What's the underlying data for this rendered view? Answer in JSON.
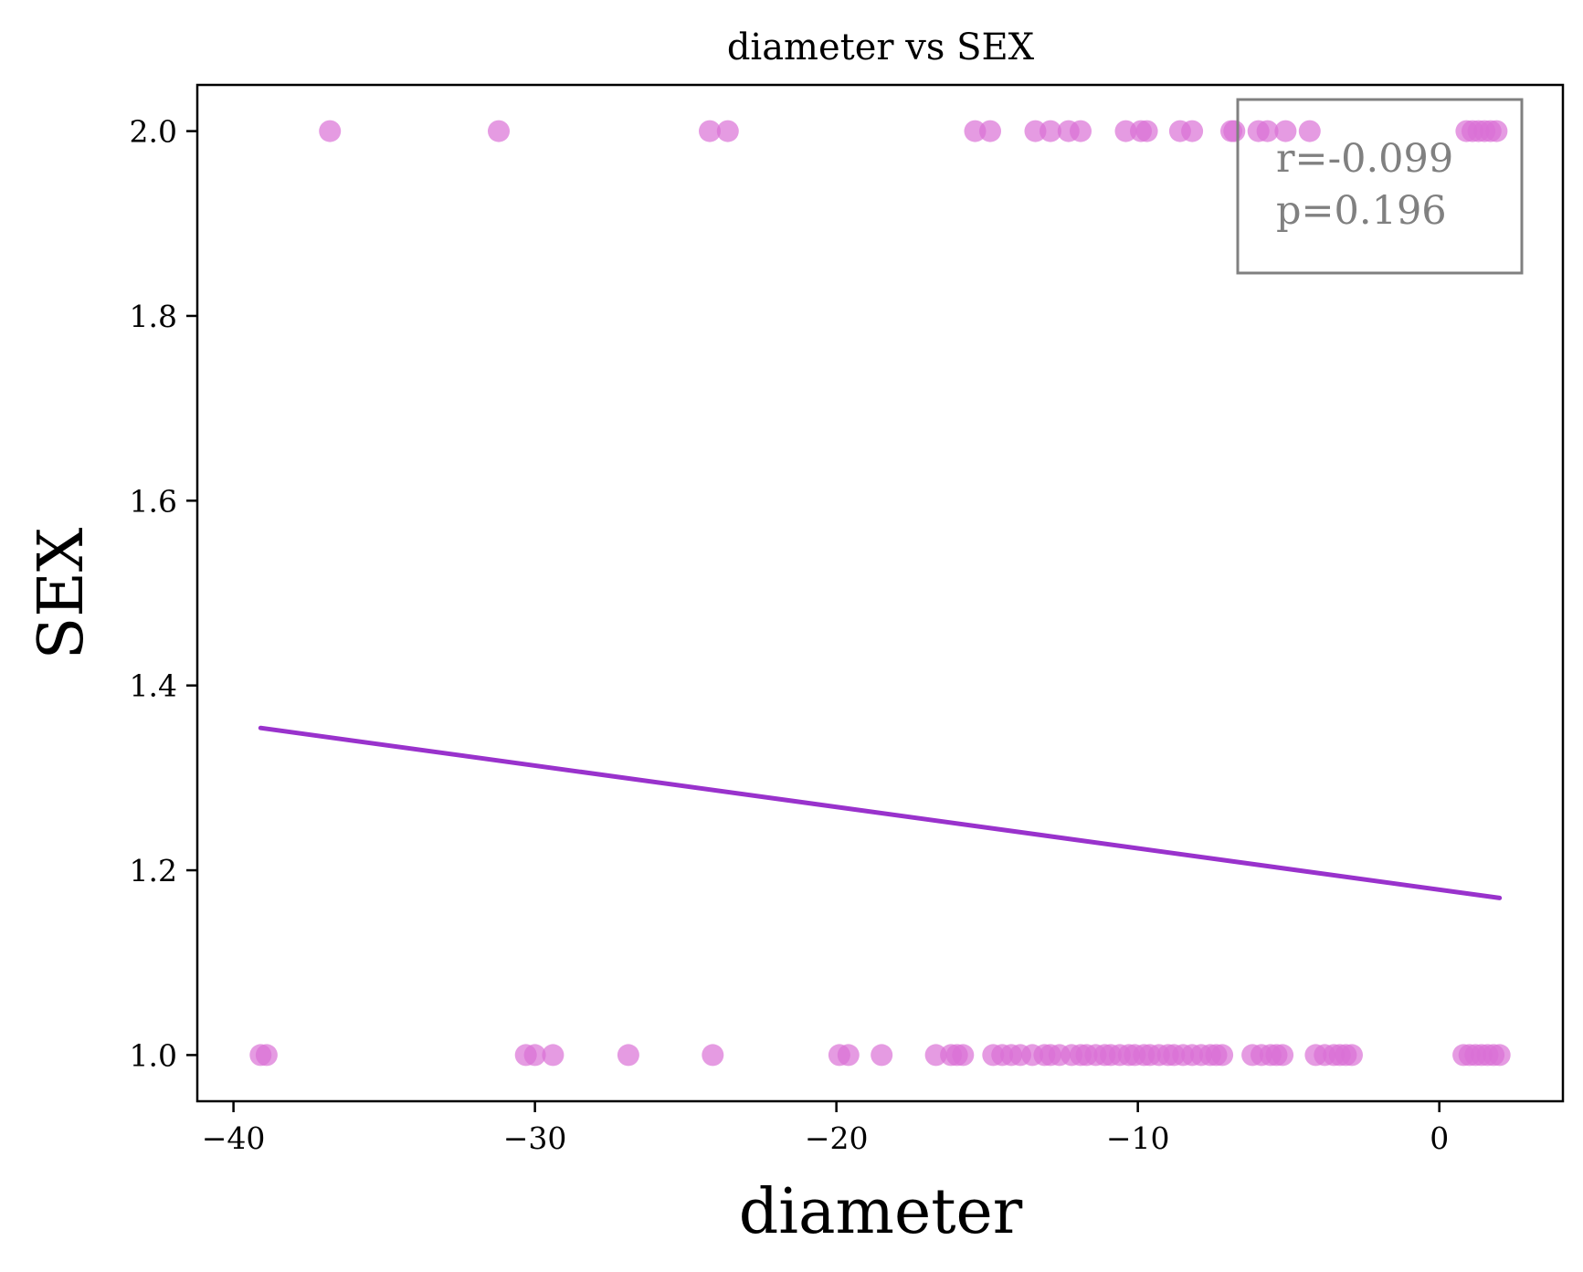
{
  "chart_data": {
    "type": "scatter",
    "title": "diameter vs SEX",
    "xlabel": "diameter",
    "ylabel": "SEX",
    "xlim": [
      -41.2,
      4.1
    ],
    "ylim": [
      0.95,
      2.05
    ],
    "xticks": [
      -40,
      -30,
      -20,
      -10,
      0
    ],
    "xtick_labels": [
      "−40",
      "−30",
      "−20",
      "−10",
      "0"
    ],
    "yticks": [
      1.0,
      1.2,
      1.4,
      1.6,
      1.8,
      2.0
    ],
    "ytick_labels": [
      "1.0",
      "1.2",
      "1.4",
      "1.6",
      "1.8",
      "2.0"
    ],
    "grid": false,
    "point_color": "#da70d6",
    "line_color": "#9932cc",
    "points": [
      {
        "x": -36.8,
        "y": 2
      },
      {
        "x": -31.2,
        "y": 2
      },
      {
        "x": -24.2,
        "y": 2
      },
      {
        "x": -23.6,
        "y": 2
      },
      {
        "x": -15.4,
        "y": 2
      },
      {
        "x": -14.9,
        "y": 2
      },
      {
        "x": -13.4,
        "y": 2
      },
      {
        "x": -12.9,
        "y": 2
      },
      {
        "x": -12.3,
        "y": 2
      },
      {
        "x": -11.9,
        "y": 2
      },
      {
        "x": -10.4,
        "y": 2
      },
      {
        "x": -9.9,
        "y": 2
      },
      {
        "x": -9.7,
        "y": 2
      },
      {
        "x": -8.6,
        "y": 2
      },
      {
        "x": -8.2,
        "y": 2
      },
      {
        "x": -6.9,
        "y": 2
      },
      {
        "x": -6.8,
        "y": 2
      },
      {
        "x": -6.0,
        "y": 2
      },
      {
        "x": -5.7,
        "y": 2
      },
      {
        "x": -5.1,
        "y": 2
      },
      {
        "x": -4.3,
        "y": 2
      },
      {
        "x": 0.9,
        "y": 2
      },
      {
        "x": 1.1,
        "y": 2
      },
      {
        "x": 1.3,
        "y": 2
      },
      {
        "x": 1.5,
        "y": 2
      },
      {
        "x": 1.7,
        "y": 2
      },
      {
        "x": 1.9,
        "y": 2
      },
      {
        "x": -39.1,
        "y": 1
      },
      {
        "x": -38.9,
        "y": 1
      },
      {
        "x": -30.3,
        "y": 1
      },
      {
        "x": -30.0,
        "y": 1
      },
      {
        "x": -29.4,
        "y": 1
      },
      {
        "x": -26.9,
        "y": 1
      },
      {
        "x": -24.1,
        "y": 1
      },
      {
        "x": -19.9,
        "y": 1
      },
      {
        "x": -19.6,
        "y": 1
      },
      {
        "x": -18.5,
        "y": 1
      },
      {
        "x": -16.7,
        "y": 1
      },
      {
        "x": -16.2,
        "y": 1
      },
      {
        "x": -16.0,
        "y": 1
      },
      {
        "x": -15.8,
        "y": 1
      },
      {
        "x": -14.8,
        "y": 1
      },
      {
        "x": -14.5,
        "y": 1
      },
      {
        "x": -14.2,
        "y": 1
      },
      {
        "x": -13.9,
        "y": 1
      },
      {
        "x": -13.5,
        "y": 1
      },
      {
        "x": -13.1,
        "y": 1
      },
      {
        "x": -12.9,
        "y": 1
      },
      {
        "x": -12.6,
        "y": 1
      },
      {
        "x": -12.2,
        "y": 1
      },
      {
        "x": -11.9,
        "y": 1
      },
      {
        "x": -11.7,
        "y": 1
      },
      {
        "x": -11.4,
        "y": 1
      },
      {
        "x": -11.1,
        "y": 1
      },
      {
        "x": -10.9,
        "y": 1
      },
      {
        "x": -10.6,
        "y": 1
      },
      {
        "x": -10.3,
        "y": 1
      },
      {
        "x": -10.1,
        "y": 1
      },
      {
        "x": -9.8,
        "y": 1
      },
      {
        "x": -9.6,
        "y": 1
      },
      {
        "x": -9.3,
        "y": 1
      },
      {
        "x": -9.0,
        "y": 1
      },
      {
        "x": -8.8,
        "y": 1
      },
      {
        "x": -8.5,
        "y": 1
      },
      {
        "x": -8.2,
        "y": 1
      },
      {
        "x": -7.9,
        "y": 1
      },
      {
        "x": -7.6,
        "y": 1
      },
      {
        "x": -7.4,
        "y": 1
      },
      {
        "x": -7.2,
        "y": 1
      },
      {
        "x": -6.2,
        "y": 1
      },
      {
        "x": -5.9,
        "y": 1
      },
      {
        "x": -5.6,
        "y": 1
      },
      {
        "x": -5.4,
        "y": 1
      },
      {
        "x": -5.2,
        "y": 1
      },
      {
        "x": -4.1,
        "y": 1
      },
      {
        "x": -3.8,
        "y": 1
      },
      {
        "x": -3.5,
        "y": 1
      },
      {
        "x": -3.3,
        "y": 1
      },
      {
        "x": -3.1,
        "y": 1
      },
      {
        "x": -2.9,
        "y": 1
      },
      {
        "x": 0.8,
        "y": 1
      },
      {
        "x": 1.0,
        "y": 1
      },
      {
        "x": 1.2,
        "y": 1
      },
      {
        "x": 1.4,
        "y": 1
      },
      {
        "x": 1.6,
        "y": 1
      },
      {
        "x": 1.8,
        "y": 1
      },
      {
        "x": 2.0,
        "y": 1
      }
    ],
    "regression_line": {
      "x": [
        -39.1,
        2.0
      ],
      "y": [
        1.354,
        1.17
      ]
    },
    "annotations": [
      "r=-0.099",
      "p=0.196"
    ],
    "annotation_placement": "top-right"
  }
}
